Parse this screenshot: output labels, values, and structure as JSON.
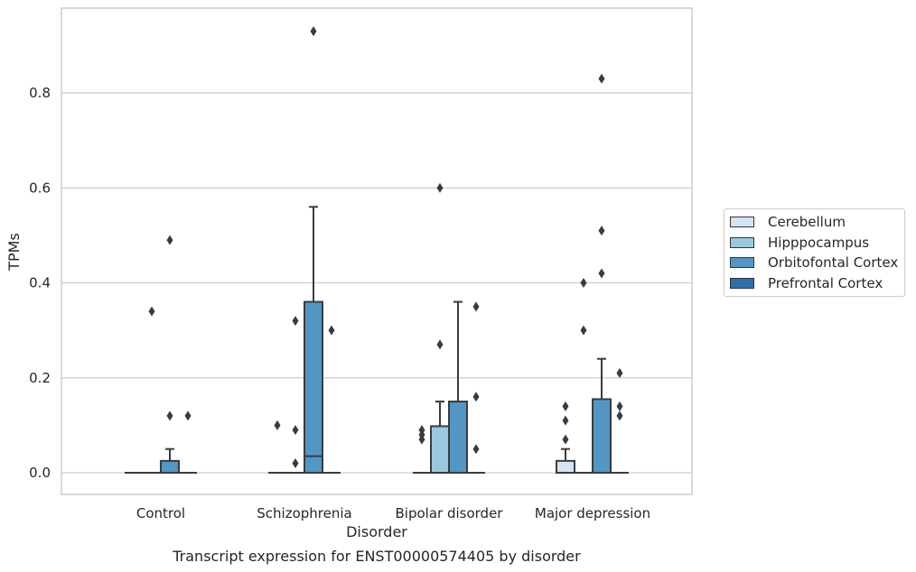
{
  "chart_data": {
    "type": "box",
    "caption": "Transcript expression for ENST00000574405 by disorder",
    "xlabel": "Disorder",
    "ylabel": "TPMs",
    "ylim": [
      -0.045,
      0.98
    ],
    "yticks": [
      "0.0",
      "0.2",
      "0.4",
      "0.6",
      "0.8"
    ],
    "ytick_values": [
      0.0,
      0.2,
      0.4,
      0.6,
      0.8
    ],
    "grid": "horizontal",
    "legend_position": "right",
    "categories": [
      "Control",
      "Schizophrenia",
      "Bipolar disorder",
      "Major depression"
    ],
    "series": [
      {
        "name": "Cerebellum",
        "color": "#d3e4f3",
        "boxes": [
          {
            "q1": 0,
            "median": 0,
            "q3": 0,
            "whisker_low": 0,
            "whisker_high": 0,
            "outliers": []
          },
          {
            "q1": 0,
            "median": 0,
            "q3": 0,
            "whisker_low": 0,
            "whisker_high": 0,
            "outliers": [
              0.1
            ]
          },
          {
            "q1": 0,
            "median": 0,
            "q3": 0,
            "whisker_low": 0,
            "whisker_high": 0,
            "outliers": [
              0.07,
              0.08,
              0.09
            ]
          },
          {
            "q1": 0,
            "median": 0,
            "q3": 0.025,
            "whisker_low": 0,
            "whisker_high": 0.05,
            "outliers": [
              0.07,
              0.11,
              0.14
            ]
          }
        ]
      },
      {
        "name": "Hipppocampus",
        "color": "#9ac8e0",
        "boxes": [
          {
            "q1": 0,
            "median": 0,
            "q3": 0,
            "whisker_low": 0,
            "whisker_high": 0,
            "outliers": [
              0.34
            ]
          },
          {
            "q1": 0,
            "median": 0,
            "q3": 0,
            "whisker_low": 0,
            "whisker_high": 0,
            "outliers": [
              0.02,
              0.09,
              0.32
            ]
          },
          {
            "q1": 0,
            "median": 0,
            "q3": 0.098,
            "whisker_low": 0,
            "whisker_high": 0.15,
            "outliers": [
              0.27,
              0.6
            ]
          },
          {
            "q1": 0,
            "median": 0,
            "q3": 0,
            "whisker_low": 0,
            "whisker_high": 0,
            "outliers": [
              0.3,
              0.4
            ]
          }
        ]
      },
      {
        "name": "Orbitofontal Cortex",
        "color": "#5296c6",
        "boxes": [
          {
            "q1": 0,
            "median": 0,
            "q3": 0.025,
            "whisker_low": 0,
            "whisker_high": 0.05,
            "outliers": [
              0.12,
              0.49
            ]
          },
          {
            "q1": 0,
            "median": 0.035,
            "q3": 0.36,
            "whisker_low": 0,
            "whisker_high": 0.56,
            "outliers": [
              0.93
            ]
          },
          {
            "q1": 0,
            "median": 0,
            "q3": 0.15,
            "whisker_low": 0,
            "whisker_high": 0.36,
            "outliers": []
          },
          {
            "q1": 0,
            "median": 0,
            "q3": 0.155,
            "whisker_low": 0,
            "whisker_high": 0.24,
            "outliers": [
              0.42,
              0.51,
              0.83
            ]
          }
        ]
      },
      {
        "name": "Prefrontal Cortex",
        "color": "#2c6fae",
        "boxes": [
          {
            "q1": 0,
            "median": 0,
            "q3": 0,
            "whisker_low": 0,
            "whisker_high": 0,
            "outliers": [
              0.12
            ]
          },
          {
            "q1": 0,
            "median": 0,
            "q3": 0,
            "whisker_low": 0,
            "whisker_high": 0,
            "outliers": [
              0.3
            ]
          },
          {
            "q1": 0,
            "median": 0,
            "q3": 0,
            "whisker_low": 0,
            "whisker_high": 0,
            "outliers": [
              0.05,
              0.16,
              0.35
            ]
          },
          {
            "q1": 0,
            "median": 0,
            "q3": 0,
            "whisker_low": 0,
            "whisker_high": 0,
            "outliers": [
              0.12,
              0.14,
              0.21
            ]
          }
        ]
      }
    ]
  }
}
